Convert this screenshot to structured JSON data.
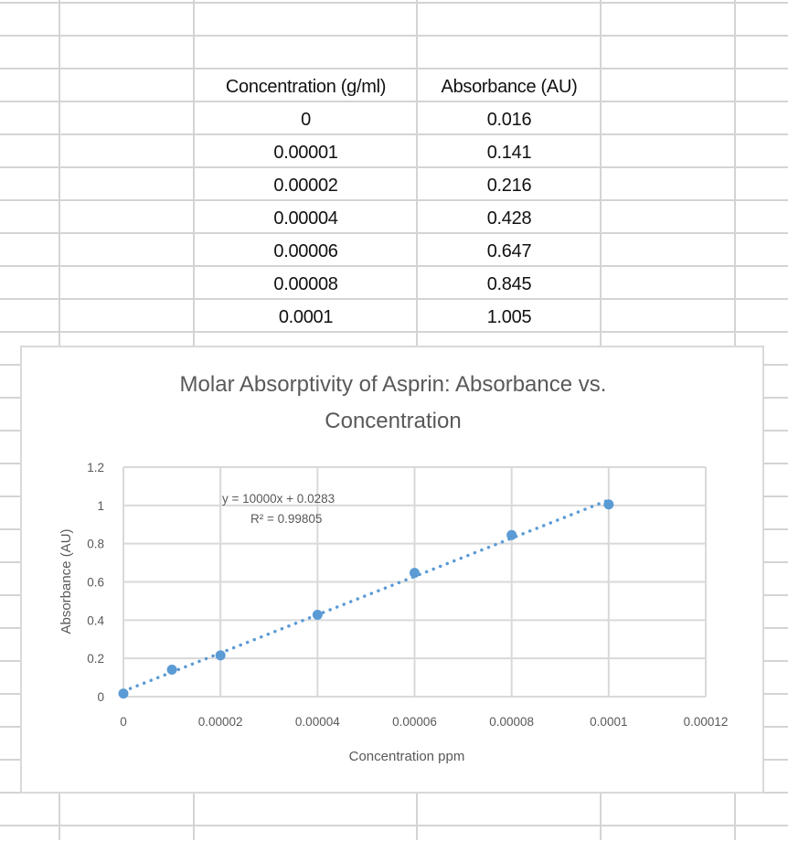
{
  "table": {
    "headers": [
      "Concentration (g/ml)",
      "Absorbance (AU)"
    ],
    "rows": [
      [
        "0",
        "0.016"
      ],
      [
        "0.00001",
        "0.141"
      ],
      [
        "0.00002",
        "0.216"
      ],
      [
        "0.00004",
        "0.428"
      ],
      [
        "0.00006",
        "0.647"
      ],
      [
        "0.00008",
        "0.845"
      ],
      [
        "0.0001",
        "1.005"
      ]
    ]
  },
  "chart": {
    "title_line1": "Molar Absorptivity of Asprin: Absorbance vs.",
    "title_line2": "Concentration",
    "xlabel": "Concentration ppm",
    "ylabel": "Absorbance (AU)",
    "x_ticks": [
      "0",
      "0.00002",
      "0.00004",
      "0.00006",
      "0.00008",
      "0.0001",
      "0.00012"
    ],
    "y_ticks": [
      "0",
      "0.2",
      "0.4",
      "0.6",
      "0.8",
      "1",
      "1.2"
    ],
    "trendline_equation": "y = 10000x + 0.0283",
    "r_squared": "R² = 0.99805",
    "series_color": "#5b9bd5",
    "grid_color": "#d9d9d9"
  },
  "chart_data": {
    "type": "scatter",
    "title": "Molar Absorptivity of Asprin: Absorbance vs. Concentration",
    "xlabel": "Concentration ppm",
    "ylabel": "Absorbance (AU)",
    "x": [
      0,
      1e-05,
      2e-05,
      4e-05,
      6e-05,
      8e-05,
      0.0001
    ],
    "series": [
      {
        "name": "Absorbance (AU)",
        "values": [
          0.016,
          0.141,
          0.216,
          0.428,
          0.647,
          0.845,
          1.005
        ]
      }
    ],
    "trendline": {
      "type": "linear",
      "slope": 10000,
      "intercept": 0.0283,
      "r2": 0.99805,
      "style": "dotted"
    },
    "xlim": [
      0,
      0.00012
    ],
    "ylim": [
      0,
      1.2
    ],
    "x_tick_step": 2e-05,
    "y_tick_step": 0.2,
    "grid": true,
    "legend": "none"
  }
}
